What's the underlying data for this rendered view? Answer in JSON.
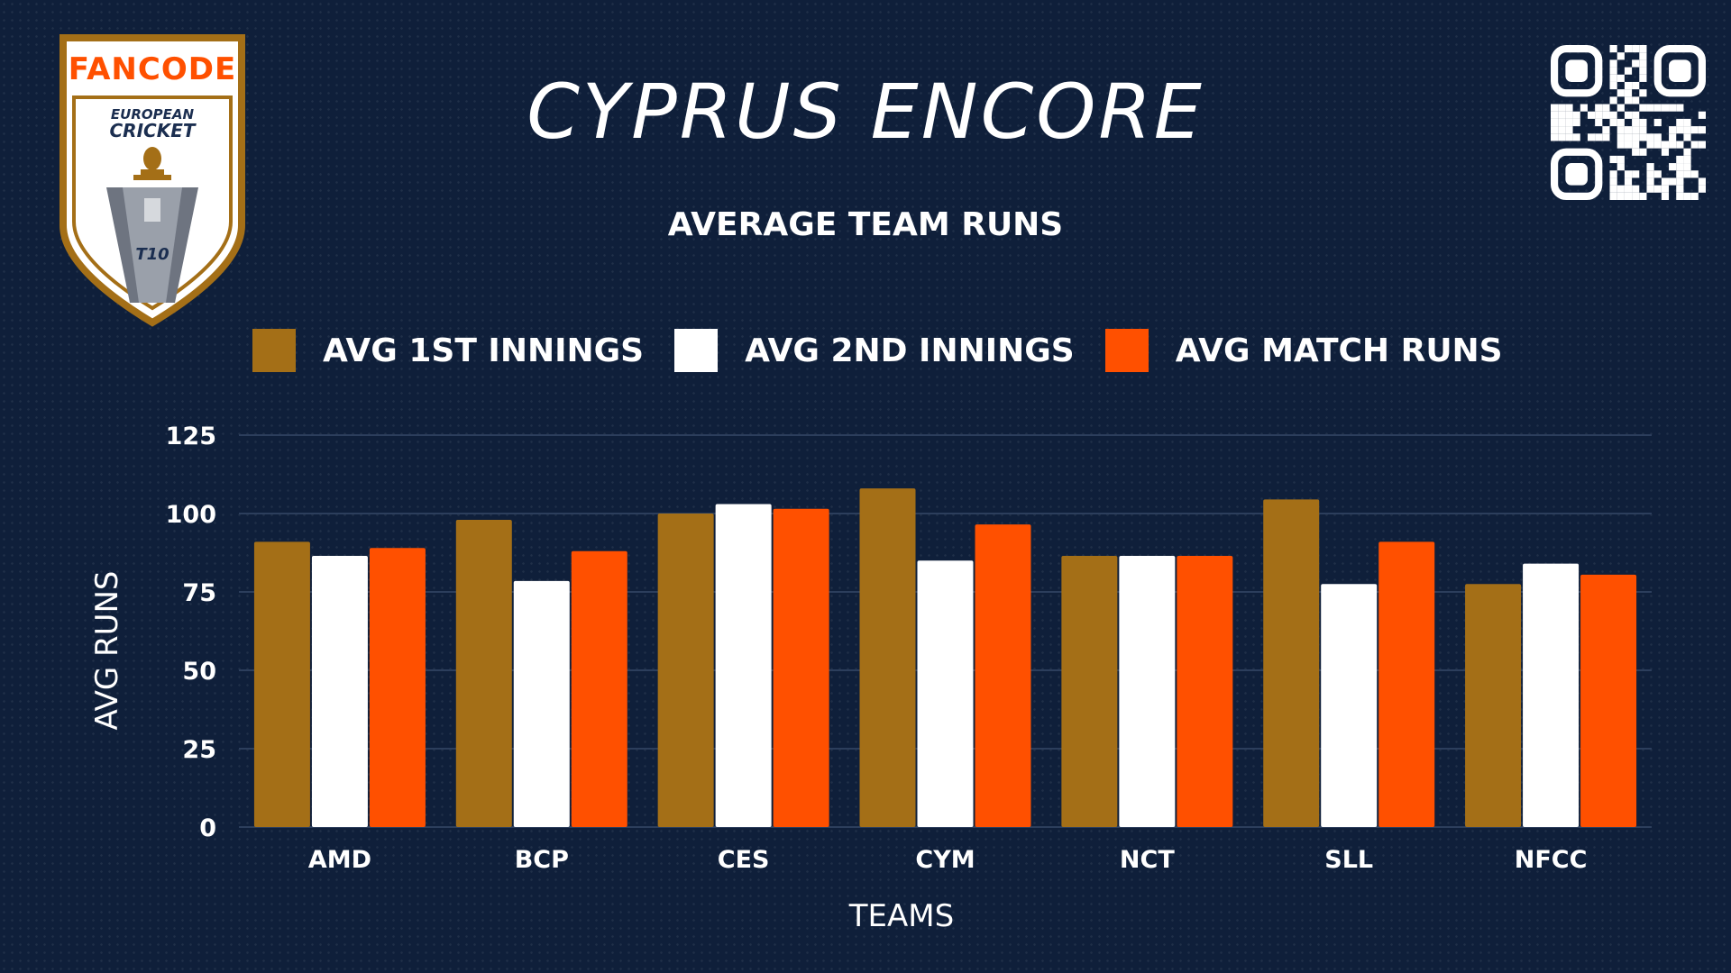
{
  "header": {
    "title": "CYPRUS ENCORE",
    "subtitle": "AVERAGE TEAM RUNS"
  },
  "logo": {
    "brand": "FANCODE",
    "line1": "EUROPEAN",
    "line2": "CRICKET",
    "format": "T10"
  },
  "colors": {
    "background": "#0f1f3a",
    "first_innings": "#a46f17",
    "second_innings": "#ffffff",
    "match_runs": "#ff5000",
    "gridline": "#2c3e5c"
  },
  "icons": {
    "qr": "qr-code-icon"
  },
  "chart_data": {
    "type": "bar",
    "xlabel": "TEAMS",
    "ylabel": "AVG RUNS",
    "ylim": [
      0,
      125
    ],
    "yticks": [
      0,
      25,
      50,
      75,
      100,
      125
    ],
    "grid": true,
    "legend_position": "top",
    "categories": [
      "AMD",
      "BCP",
      "CES",
      "CYM",
      "NCT",
      "SLL",
      "NFCC"
    ],
    "series": [
      {
        "name": "AVG 1ST INNINGS",
        "color": "#a46f17",
        "values": [
          91,
          98,
          100,
          108,
          86.5,
          104.5,
          77.5
        ]
      },
      {
        "name": "AVG 2ND INNINGS",
        "color": "#ffffff",
        "values": [
          86.5,
          78.5,
          103,
          85,
          86.5,
          77.5,
          84
        ]
      },
      {
        "name": "AVG MATCH RUNS",
        "color": "#ff5000",
        "values": [
          89,
          88,
          101.5,
          96.5,
          86.5,
          91,
          80.5
        ]
      }
    ]
  }
}
